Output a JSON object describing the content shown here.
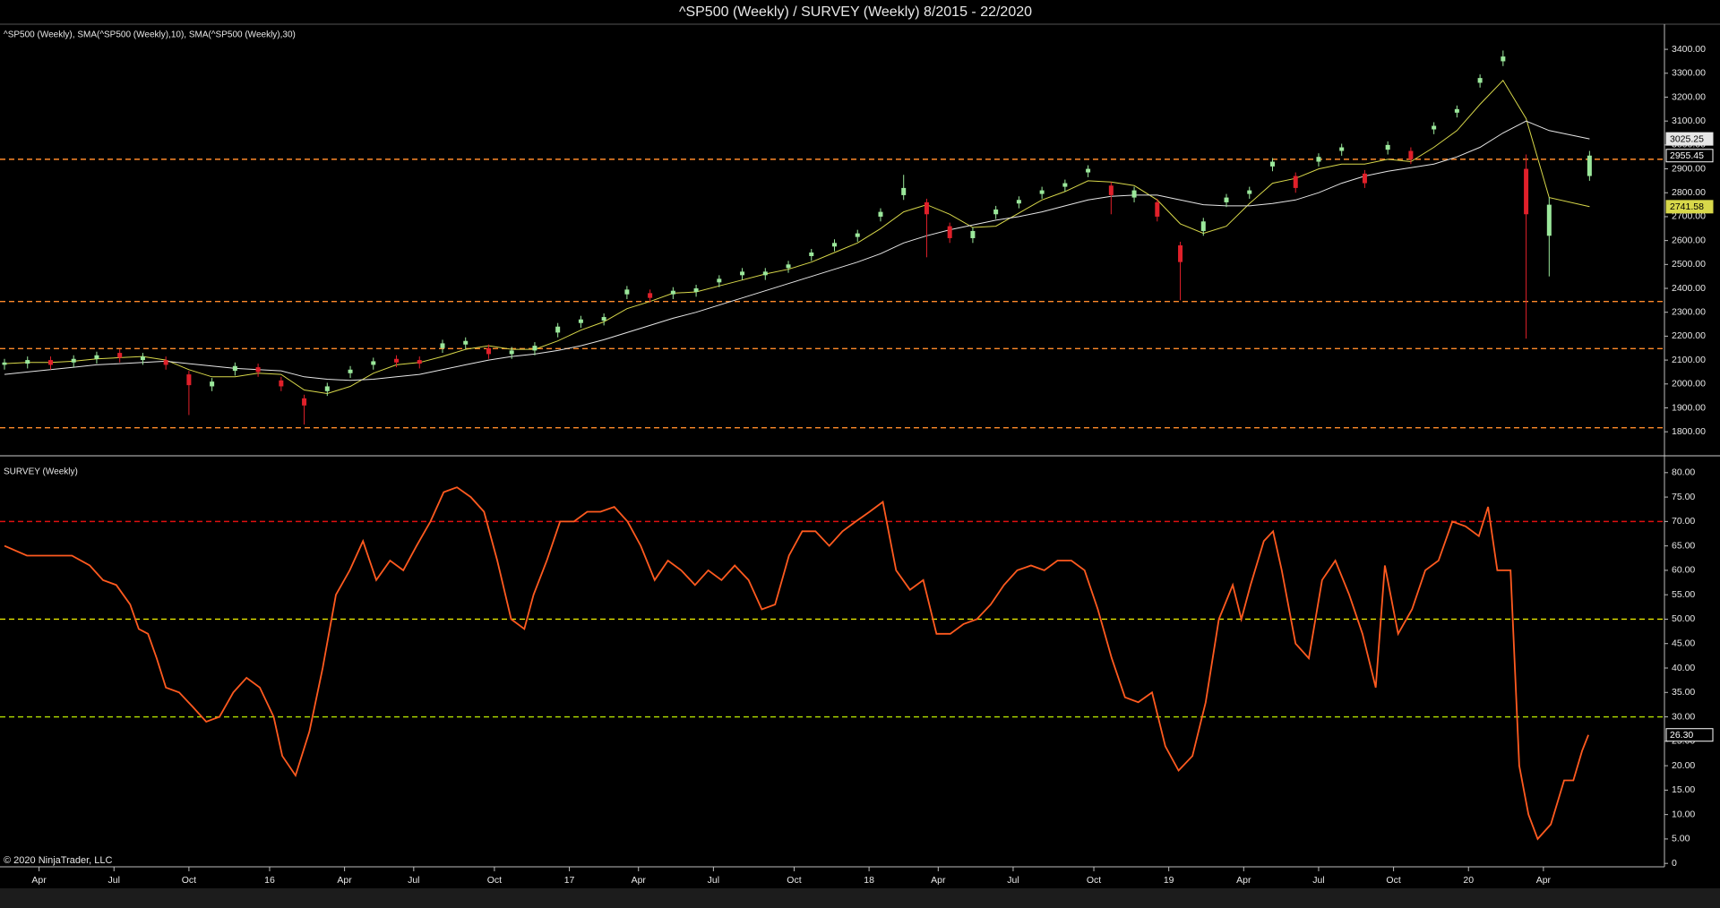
{
  "chart_data": [
    {
      "type": "candlestick",
      "title": "^SP500 (Weekly) / SURVEY (Weekly)  8/2015 - 22/2020",
      "legend": "^SP500 (Weekly), SMA(^SP500 (Weekly),10), SMA(^SP500 (Weekly),30)",
      "xlim": [
        0,
        288
      ],
      "ylim": [
        1707,
        3494
      ],
      "yticks": [
        {
          "value": 1800,
          "label": "1800.00"
        },
        {
          "value": 1900,
          "label": "1900.00"
        },
        {
          "value": 2000,
          "label": "2000.00"
        },
        {
          "value": 2100,
          "label": "2100.00"
        },
        {
          "value": 2200,
          "label": "2200.00"
        },
        {
          "value": 2300,
          "label": "2300.00"
        },
        {
          "value": 2400,
          "label": "2400.00"
        },
        {
          "value": 2500,
          "label": "2500.00"
        },
        {
          "value": 2600,
          "label": "2600.00"
        },
        {
          "value": 2700,
          "label": "2700.00"
        },
        {
          "value": 2800,
          "label": "2800.00"
        },
        {
          "value": 2900,
          "label": "2900.00"
        },
        {
          "value": 3000,
          "label": "3000.00"
        },
        {
          "value": 3100,
          "label": "3100.00"
        },
        {
          "value": 3200,
          "label": "3200.00"
        },
        {
          "value": 3300,
          "label": "3300.00"
        },
        {
          "value": 3400,
          "label": "3400.00"
        }
      ],
      "up_color": "#9be89b",
      "down_color": "#e0202a",
      "x": [
        0,
        4,
        8,
        12,
        16,
        20,
        24,
        28,
        32,
        36,
        40,
        44,
        48,
        52,
        56,
        60,
        64,
        68,
        72,
        76,
        80,
        84,
        88,
        92,
        96,
        100,
        104,
        108,
        112,
        116,
        120,
        124,
        128,
        132,
        136,
        140,
        144,
        148,
        152,
        156,
        160,
        164,
        168,
        172,
        176,
        180,
        184,
        188,
        192,
        196,
        200,
        204,
        208,
        212,
        216,
        220,
        224,
        228,
        232,
        236,
        240,
        244,
        248,
        252,
        256,
        260,
        264,
        268,
        275
      ],
      "open": [
        2080,
        2085,
        2100,
        2090,
        2105,
        2130,
        2100,
        2100,
        2040,
        1990,
        2055,
        2070,
        2015,
        1940,
        1970,
        2045,
        2080,
        2105,
        2100,
        2150,
        2165,
        2150,
        2125,
        2140,
        2215,
        2255,
        2265,
        2375,
        2380,
        2375,
        2385,
        2425,
        2455,
        2455,
        2485,
        2535,
        2575,
        2615,
        2700,
        2790,
        2760,
        2660,
        2610,
        2710,
        2755,
        2795,
        2825,
        2885,
        2830,
        2780,
        2760,
        2580,
        2640,
        2760,
        2795,
        2910,
        2870,
        2930,
        2975,
        2880,
        2980,
        2975,
        3065,
        3135,
        3260,
        3350,
        2900,
        2620,
        2870
      ],
      "high": [
        2105,
        2115,
        2115,
        2120,
        2135,
        2145,
        2130,
        2115,
        2055,
        2025,
        2090,
        2085,
        2030,
        1955,
        2005,
        2075,
        2110,
        2120,
        2115,
        2185,
        2195,
        2165,
        2155,
        2175,
        2255,
        2285,
        2295,
        2410,
        2395,
        2405,
        2415,
        2455,
        2485,
        2485,
        2515,
        2565,
        2605,
        2645,
        2735,
        2875,
        2775,
        2675,
        2655,
        2745,
        2785,
        2825,
        2855,
        2915,
        2845,
        2825,
        2775,
        2595,
        2695,
        2795,
        2825,
        2945,
        2885,
        2965,
        3005,
        2895,
        3015,
        2990,
        3095,
        3165,
        3295,
        3395,
        2960,
        2780,
        2975
      ],
      "low": [
        2060,
        2065,
        2060,
        2070,
        2085,
        2090,
        2080,
        2060,
        1870,
        1970,
        2035,
        2030,
        1970,
        1830,
        1950,
        2025,
        2060,
        2070,
        2065,
        2130,
        2145,
        2105,
        2105,
        2120,
        2195,
        2235,
        2245,
        2355,
        2340,
        2355,
        2365,
        2405,
        2435,
        2435,
        2465,
        2515,
        2555,
        2595,
        2680,
        2770,
        2530,
        2590,
        2590,
        2690,
        2735,
        2775,
        2805,
        2865,
        2710,
        2760,
        2680,
        2350,
        2620,
        2740,
        2775,
        2890,
        2800,
        2910,
        2955,
        2820,
        2960,
        2920,
        3045,
        3115,
        3240,
        3330,
        2190,
        2450,
        2850
      ],
      "close": [
        2090,
        2100,
        2080,
        2105,
        2120,
        2110,
        2115,
        2080,
        1995,
        2010,
        2075,
        2050,
        1990,
        1910,
        1990,
        2060,
        2095,
        2090,
        2085,
        2170,
        2180,
        2125,
        2140,
        2160,
        2240,
        2270,
        2280,
        2395,
        2360,
        2390,
        2400,
        2440,
        2470,
        2470,
        2500,
        2550,
        2590,
        2630,
        2720,
        2820,
        2710,
        2610,
        2640,
        2730,
        2770,
        2810,
        2840,
        2900,
        2790,
        2810,
        2700,
        2510,
        2680,
        2780,
        2810,
        2930,
        2820,
        2950,
        2990,
        2840,
        3000,
        2940,
        3080,
        3150,
        3280,
        3370,
        2710,
        2750,
        2955.45
      ],
      "series": [
        {
          "color": "#d8d84a",
          "values": [
            2085,
            2090,
            2090,
            2095,
            2105,
            2110,
            2115,
            2100,
            2060,
            2030,
            2030,
            2045,
            2040,
            1975,
            1960,
            1990,
            2045,
            2080,
            2090,
            2115,
            2145,
            2160,
            2145,
            2145,
            2180,
            2225,
            2260,
            2315,
            2345,
            2380,
            2385,
            2410,
            2435,
            2460,
            2480,
            2510,
            2550,
            2590,
            2650,
            2720,
            2750,
            2710,
            2655,
            2660,
            2715,
            2770,
            2805,
            2850,
            2845,
            2830,
            2770,
            2670,
            2630,
            2660,
            2755,
            2840,
            2860,
            2900,
            2920,
            2920,
            2940,
            2930,
            2990,
            3060,
            3170,
            3270,
            3110,
            2780,
            2741.58
          ]
        },
        {
          "color": "#e6e6e6",
          "values": [
            2040,
            2050,
            2060,
            2070,
            2080,
            2085,
            2090,
            2095,
            2085,
            2075,
            2065,
            2060,
            2055,
            2030,
            2020,
            2015,
            2020,
            2030,
            2040,
            2060,
            2080,
            2100,
            2115,
            2125,
            2140,
            2160,
            2185,
            2215,
            2245,
            2275,
            2300,
            2330,
            2360,
            2390,
            2420,
            2450,
            2480,
            2510,
            2545,
            2590,
            2620,
            2645,
            2665,
            2685,
            2700,
            2720,
            2745,
            2770,
            2785,
            2790,
            2790,
            2770,
            2750,
            2745,
            2745,
            2755,
            2770,
            2800,
            2840,
            2870,
            2890,
            2905,
            2920,
            2950,
            2990,
            3050,
            3100,
            3060,
            3025.25
          ]
        }
      ],
      "hlines": [
        2940,
        2345,
        2148,
        1817
      ],
      "hline_color": "#ff8a2a"
    },
    {
      "type": "line",
      "legend": "SURVEY (Weekly)",
      "copyright": "© 2020 NinjaTrader, LLC",
      "xlim": [
        0,
        288
      ],
      "xticks": [
        {
          "value": 6,
          "label": "Apr"
        },
        {
          "value": 19,
          "label": "Jul"
        },
        {
          "value": 32,
          "label": "Oct"
        },
        {
          "value": 46,
          "label": "16"
        },
        {
          "value": 59,
          "label": "Apr"
        },
        {
          "value": 71,
          "label": "Jul"
        },
        {
          "value": 85,
          "label": "Oct"
        },
        {
          "value": 98,
          "label": "17"
        },
        {
          "value": 110,
          "label": "Apr"
        },
        {
          "value": 123,
          "label": "Jul"
        },
        {
          "value": 137,
          "label": "Oct"
        },
        {
          "value": 150,
          "label": "18"
        },
        {
          "value": 162,
          "label": "Apr"
        },
        {
          "value": 175,
          "label": "Jul"
        },
        {
          "value": 189,
          "label": "Oct"
        },
        {
          "value": 202,
          "label": "19"
        },
        {
          "value": 215,
          "label": "Apr"
        },
        {
          "value": 228,
          "label": "Jul"
        },
        {
          "value": 241,
          "label": "Oct"
        },
        {
          "value": 254,
          "label": "20"
        },
        {
          "value": 267,
          "label": "Apr"
        }
      ],
      "ylim": [
        -0.7,
        82.9
      ],
      "yticks": [
        0,
        {
          "value": 5,
          "label": "5.00"
        },
        {
          "value": 10,
          "label": "10.00"
        },
        {
          "value": 15,
          "label": "15.00"
        },
        {
          "value": 20,
          "label": "20.00"
        },
        {
          "value": 25,
          "label": "25.00"
        },
        {
          "value": 30,
          "label": "30.00"
        },
        {
          "value": 35,
          "label": "35.00"
        },
        {
          "value": 40,
          "label": "40.00"
        },
        {
          "value": 45,
          "label": "45.00"
        },
        {
          "value": 50,
          "label": "50.00"
        },
        {
          "value": 55,
          "label": "55.00"
        },
        {
          "value": 60,
          "label": "60.00"
        },
        {
          "value": 65,
          "label": "65.00"
        },
        {
          "value": 70,
          "label": "70.00"
        },
        {
          "value": 75,
          "label": "75.00"
        },
        {
          "value": 80,
          "label": "80.00"
        }
      ],
      "x": [
        0,
        3.9,
        7.8,
        11.7,
        14.8,
        17.1,
        19.4,
        21.8,
        23.3,
        24.9,
        26.4,
        28,
        30.3,
        32.7,
        35,
        37.3,
        39.7,
        42,
        44.3,
        46.7,
        48.2,
        50.5,
        52.9,
        55.2,
        57.5,
        59.9,
        62.2,
        64.5,
        66.9,
        69.2,
        71.5,
        73.9,
        76.2,
        78.5,
        80.9,
        83.2,
        85.5,
        87.9,
        90.2,
        91.8,
        94.1,
        96.4,
        98.8,
        101.1,
        103.4,
        105.8,
        108.1,
        110.4,
        112.8,
        115.1,
        117.4,
        119.8,
        122.1,
        124.4,
        126.7,
        129.1,
        131.4,
        133.7,
        136.1,
        138.4,
        140.7,
        143.1,
        145.4,
        147.7,
        150.1,
        152.4,
        154.7,
        157.1,
        159.4,
        161.7,
        164.1,
        166.4,
        168.7,
        171.1,
        173.4,
        175.7,
        178.1,
        180.4,
        182.7,
        185.1,
        187.4,
        189.7,
        192.1,
        194.4,
        196.7,
        199.1,
        201.4,
        203.7,
        206.1,
        208.4,
        210.7,
        213.1,
        214.6,
        216.2,
        218.5,
        220.1,
        221.6,
        224,
        226.3,
        228.6,
        230.9,
        233.3,
        235.6,
        237.9,
        239.5,
        241.8,
        244.2,
        246.5,
        248.8,
        251.2,
        253.5,
        255.8,
        257.4,
        259,
        261.3,
        262.8,
        264.4,
        266,
        268.3,
        270.6,
        272.2,
        273.7,
        274.8
      ],
      "series": [
        {
          "color": "#ff5a1f",
          "values": [
            65,
            63,
            63,
            63,
            61,
            58,
            57,
            53,
            48,
            47,
            42,
            36,
            35,
            32,
            29,
            30,
            35,
            38,
            36,
            30,
            22,
            18,
            27,
            40,
            55,
            60,
            66,
            58,
            62,
            60,
            65,
            70,
            76,
            77,
            75,
            72,
            62,
            50,
            48,
            55,
            62,
            70,
            70,
            72,
            72,
            73,
            70,
            65,
            58,
            62,
            60,
            57,
            60,
            58,
            61,
            58,
            52,
            53,
            63,
            68,
            68,
            65,
            68,
            70,
            72,
            74,
            60,
            56,
            58,
            47,
            47,
            49,
            50,
            53,
            57,
            60,
            61,
            60,
            62,
            62,
            60,
            52,
            42,
            34,
            33,
            35,
            24,
            19,
            22,
            33,
            50,
            57,
            50,
            57,
            66,
            68,
            60,
            45,
            42,
            58,
            62,
            55,
            47,
            36,
            61,
            47,
            52,
            60,
            62,
            70,
            69,
            67,
            73,
            60,
            60,
            20,
            10,
            5,
            8,
            17,
            17,
            23,
            26.3
          ]
        }
      ],
      "marker": {
        "value": 26.3,
        "label": "26.30"
      },
      "hlines": [
        {
          "value": 70,
          "color": "#e01010"
        },
        {
          "value": 50,
          "color": "#e8e800"
        },
        {
          "value": 30,
          "color": "#b4e000"
        }
      ]
    }
  ]
}
